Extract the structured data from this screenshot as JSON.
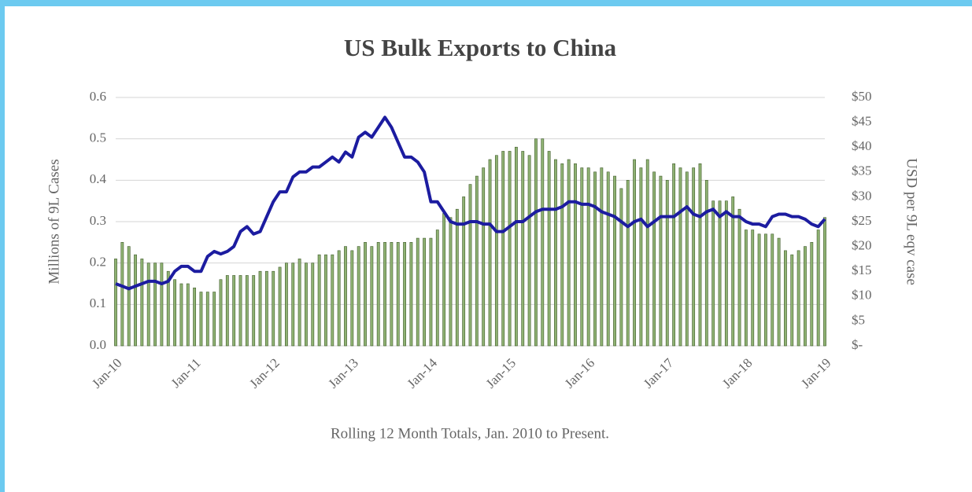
{
  "chart_data": {
    "type": "bar-line",
    "title": "US Bulk Exports to China",
    "ylabel": "Millions of 9L Cases",
    "y2label": "USD per 9L eqv case",
    "xlabel": "Rolling 12 Month Totals, Jan. 2010 to Present.",
    "categories": [
      "Jan-10",
      null,
      null,
      null,
      null,
      null,
      null,
      null,
      null,
      null,
      null,
      null,
      "Jan-11",
      null,
      null,
      null,
      null,
      null,
      null,
      null,
      null,
      null,
      null,
      null,
      "Jan-12",
      null,
      null,
      null,
      null,
      null,
      null,
      null,
      null,
      null,
      null,
      null,
      "Jan-13",
      null,
      null,
      null,
      null,
      null,
      null,
      null,
      null,
      null,
      null,
      null,
      "Jan-14",
      null,
      null,
      null,
      null,
      null,
      null,
      null,
      null,
      null,
      null,
      null,
      "Jan-15",
      null,
      null,
      null,
      null,
      null,
      null,
      null,
      null,
      null,
      null,
      null,
      "Jan-16",
      null,
      null,
      null,
      null,
      null,
      null,
      null,
      null,
      null,
      null,
      null,
      "Jan-17",
      null,
      null,
      null,
      null,
      null,
      null,
      null,
      null,
      null,
      null,
      null,
      "Jan-18",
      null,
      null,
      null,
      null,
      null,
      null,
      null,
      null,
      null,
      null,
      null,
      "Jan-19"
    ],
    "series": [
      {
        "type": "bar",
        "color": "#8fb273",
        "values": [
          0.21,
          0.25,
          0.24,
          0.22,
          0.21,
          0.2,
          0.2,
          0.2,
          0.18,
          0.16,
          0.15,
          0.15,
          0.14,
          0.13,
          0.13,
          0.13,
          0.16,
          0.17,
          0.17,
          0.17,
          0.17,
          0.17,
          0.18,
          0.18,
          0.18,
          0.19,
          0.2,
          0.2,
          0.21,
          0.2,
          0.2,
          0.22,
          0.22,
          0.22,
          0.23,
          0.24,
          0.23,
          0.24,
          0.25,
          0.24,
          0.25,
          0.25,
          0.25,
          0.25,
          0.25,
          0.25,
          0.26,
          0.26,
          0.26,
          0.28,
          0.32,
          0.31,
          0.33,
          0.36,
          0.39,
          0.41,
          0.43,
          0.45,
          0.46,
          0.47,
          0.47,
          0.48,
          0.47,
          0.46,
          0.5,
          0.5,
          0.47,
          0.45,
          0.44,
          0.45,
          0.44,
          0.43,
          0.43,
          0.42,
          0.43,
          0.42,
          0.41,
          0.38,
          0.4,
          0.45,
          0.43,
          0.45,
          0.42,
          0.41,
          0.4,
          0.44,
          0.43,
          0.42,
          0.43,
          0.44,
          0.4,
          0.35,
          0.35,
          0.35,
          0.36,
          0.33,
          0.28,
          0.28,
          0.27,
          0.27,
          0.27,
          0.26,
          0.23,
          0.22,
          0.23,
          0.24,
          0.25,
          0.28,
          0.31
        ]
      },
      {
        "type": "line",
        "axis": "y2",
        "color": "#1c1ca0",
        "values": [
          12.5,
          12,
          11.5,
          12,
          12.5,
          13,
          13,
          12.5,
          13,
          15,
          16,
          16,
          15,
          15,
          18,
          19,
          18.5,
          19,
          20,
          23,
          24,
          22.5,
          23,
          26,
          29,
          31,
          31,
          34,
          35,
          35,
          36,
          36,
          37,
          38,
          37,
          39,
          38,
          42,
          43,
          42,
          44,
          46,
          44,
          41,
          38,
          38,
          37,
          35,
          29,
          29,
          27,
          25,
          24.5,
          24.5,
          25,
          25,
          24.5,
          24.5,
          23,
          23,
          24,
          25,
          25,
          26,
          27,
          27.5,
          27.5,
          27.5,
          28,
          29,
          29,
          28.5,
          28.5,
          28,
          27,
          26.5,
          26,
          25,
          24,
          25,
          25.5,
          24,
          25,
          26,
          26,
          26,
          27,
          28,
          26.5,
          26,
          27,
          27.5,
          26,
          27,
          26,
          26,
          25,
          24.5,
          24.5,
          24,
          26,
          26.5,
          26.5,
          26,
          26,
          25.5,
          24.5,
          24,
          25.5
        ]
      }
    ],
    "ylim": [
      0,
      0.6
    ],
    "yticks": [
      {
        "value": 0,
        "label": "0.0"
      },
      0.1,
      0.2,
      0.3,
      0.4,
      0.5,
      0.6
    ],
    "y2lim": [
      0,
      50
    ],
    "y2ticks": [
      {
        "value": 0,
        "label": "$-"
      },
      {
        "value": 5,
        "label": "$5"
      },
      {
        "value": 10,
        "label": "$10"
      },
      {
        "value": 15,
        "label": "$15"
      },
      {
        "value": 20,
        "label": "$20"
      },
      {
        "value": 25,
        "label": "$25"
      },
      {
        "value": 30,
        "label": "$30"
      },
      {
        "value": 35,
        "label": "$35"
      },
      {
        "value": 40,
        "label": "$40"
      },
      {
        "value": 45,
        "label": "$45"
      },
      {
        "value": 50,
        "label": "$50"
      }
    ],
    "grid": true
  }
}
